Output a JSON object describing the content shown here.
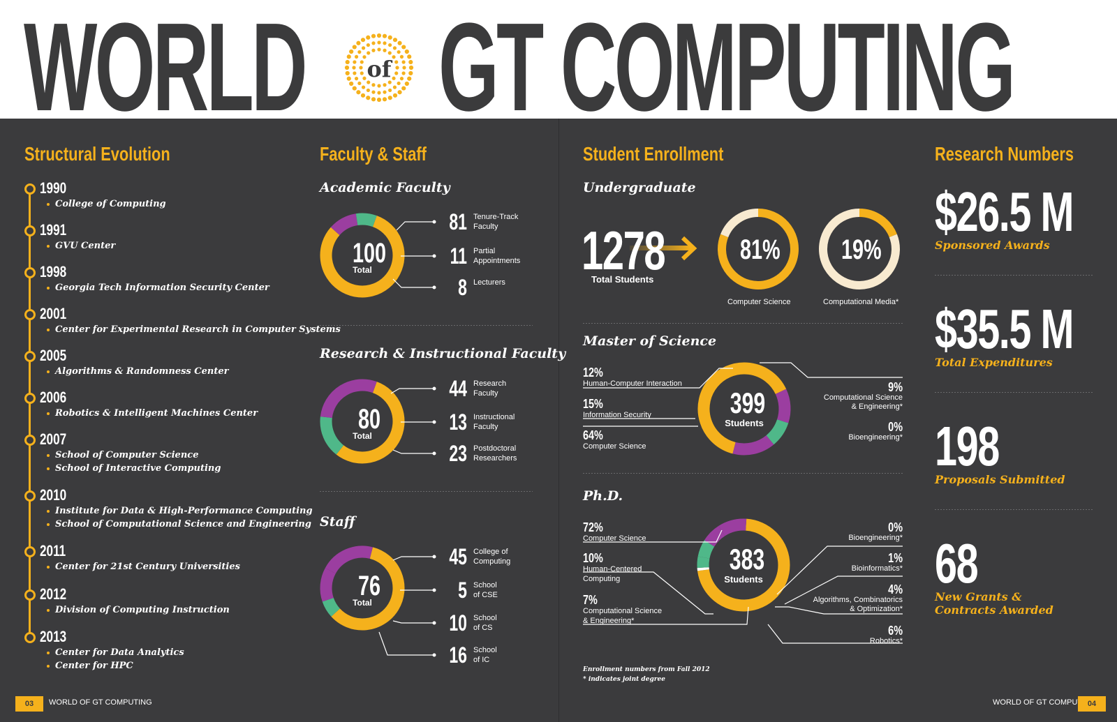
{
  "masthead": {
    "word1": "WORLD",
    "of": "of",
    "word2": "GT COMPUTING"
  },
  "colors": {
    "accent": "#f5b11c",
    "purple": "#9b3ea0",
    "green": "#4fb889",
    "cream": "#f8ead0",
    "panel": "#3b3b3d"
  },
  "structural": {
    "title": "Structural Evolution",
    "timeline": [
      {
        "year": "1990",
        "items": [
          "College of Computing"
        ]
      },
      {
        "year": "1991",
        "items": [
          "GVU Center"
        ]
      },
      {
        "year": "1998",
        "items": [
          "Georgia Tech Information Security Center"
        ]
      },
      {
        "year": "2001",
        "items": [
          "Center for Experimental Research in Computer Systems"
        ]
      },
      {
        "year": "2005",
        "items": [
          "Algorithms & Randomness Center"
        ]
      },
      {
        "year": "2006",
        "items": [
          "Robotics & Intelligent Machines Center"
        ]
      },
      {
        "year": "2007",
        "items": [
          "School of Computer Science",
          "School of Interactive Computing"
        ]
      },
      {
        "year": "2010",
        "items": [
          "Institute for Data & High-Performance Computing",
          "School of Computational Science and Engineering"
        ]
      },
      {
        "year": "2011",
        "items": [
          "Center for 21st Century Universities"
        ]
      },
      {
        "year": "2012",
        "items": [
          "Division of Computing Instruction"
        ]
      },
      {
        "year": "2013",
        "items": [
          "Center for Data Analytics",
          "Center for HPC"
        ]
      }
    ]
  },
  "faculty": {
    "title": "Faculty & Staff",
    "academic": {
      "title": "Academic Faculty",
      "total": "100",
      "total_label": "Total",
      "rows": [
        {
          "num": "81",
          "label": "Tenure-Track\nFaculty"
        },
        {
          "num": "11",
          "label": "Partial\nAppointments"
        },
        {
          "num": "8",
          "label": "Lecturers"
        }
      ],
      "segments": [
        81,
        11,
        8
      ]
    },
    "research": {
      "title": "Research & Instructional Faculty",
      "total": "80",
      "total_label": "Total",
      "rows": [
        {
          "num": "44",
          "label": "Research\nFaculty"
        },
        {
          "num": "13",
          "label": "Instructional\nFaculty"
        },
        {
          "num": "23",
          "label": "Postdoctoral\nResearchers"
        }
      ],
      "segments": [
        44,
        13,
        23
      ]
    },
    "staff": {
      "title": "Staff",
      "total": "76",
      "total_label": "Total",
      "rows": [
        {
          "num": "45",
          "label": "College of\nComputing"
        },
        {
          "num": "5",
          "label": "School\nof CSE"
        },
        {
          "num": "10",
          "label": "School\nof CS"
        },
        {
          "num": "16",
          "label": "School\nof IC"
        }
      ],
      "segments": [
        45,
        5,
        10,
        16
      ]
    }
  },
  "enrollment": {
    "title": "Student Enrollment",
    "undergrad": {
      "title": "Undergraduate",
      "total": "1278",
      "total_label": "Total Students",
      "cs": {
        "pct": "81",
        "label": "Computer Science",
        "value": 81
      },
      "cm": {
        "pct": "19",
        "label": "Computational Media*",
        "value": 19
      }
    },
    "ms": {
      "title": "Master of Science",
      "total": "399",
      "total_label": "Students",
      "left": [
        {
          "pct": "12%",
          "label": "Human-Computer Interaction"
        },
        {
          "pct": "15%",
          "label": "Information Security"
        },
        {
          "pct": "64%",
          "label": "Computer Science"
        }
      ],
      "right": [
        {
          "pct": "9%",
          "label": "Computational Science\n& Engineering*"
        },
        {
          "pct": "0%",
          "label": "Bioengineering*"
        }
      ],
      "segments": [
        64,
        12,
        9,
        15
      ]
    },
    "phd": {
      "title": "Ph.D.",
      "total": "383",
      "total_label": "Students",
      "left": [
        {
          "pct": "72%",
          "label": "Computer Science"
        },
        {
          "pct": "10%",
          "label": "Human-Centered\nComputing"
        },
        {
          "pct": "7%",
          "label": "Computational Science\n& Engineering*"
        }
      ],
      "right": [
        {
          "pct": "0%",
          "label": "Bioengineering*"
        },
        {
          "pct": "1%",
          "label": "Bioinformatics*"
        },
        {
          "pct": "4%",
          "label": "Algorithms, Combinatorics\n& Optimization*"
        },
        {
          "pct": "6%",
          "label": "Robotics*"
        }
      ],
      "segments": [
        72,
        1,
        4,
        6,
        7,
        10
      ]
    },
    "note1": "Enrollment numbers from Fall 2012",
    "note2": "* indicates joint degree"
  },
  "research": {
    "title": "Research Numbers",
    "items": [
      {
        "value": "$26.5 M",
        "label": "Sponsored Awards"
      },
      {
        "value": "$35.5 M",
        "label": "Total Expenditures"
      },
      {
        "value": "198",
        "label": "Proposals Submitted"
      },
      {
        "value": "68",
        "label": "New Grants &\nContracts Awarded"
      }
    ]
  },
  "footer": {
    "left_page": "03",
    "left_text": "WORLD OF GT COMPUTING",
    "right_text": "WORLD OF GT COMPUTING",
    "right_page": "04"
  }
}
